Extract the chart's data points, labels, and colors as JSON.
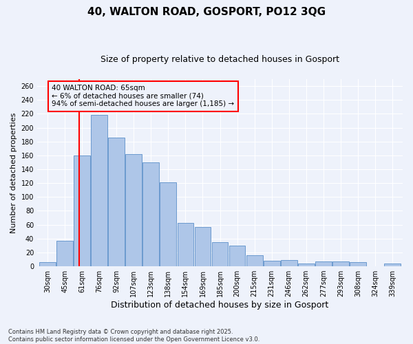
{
  "title1": "40, WALTON ROAD, GOSPORT, PO12 3QG",
  "title2": "Size of property relative to detached houses in Gosport",
  "xlabel": "Distribution of detached houses by size in Gosport",
  "ylabel": "Number of detached properties",
  "footer": "Contains HM Land Registry data © Crown copyright and database right 2025.\nContains public sector information licensed under the Open Government Licence v3.0.",
  "categories": [
    "30sqm",
    "45sqm",
    "61sqm",
    "76sqm",
    "92sqm",
    "107sqm",
    "123sqm",
    "138sqm",
    "154sqm",
    "169sqm",
    "185sqm",
    "200sqm",
    "215sqm",
    "231sqm",
    "246sqm",
    "262sqm",
    "277sqm",
    "293sqm",
    "308sqm",
    "324sqm",
    "339sqm"
  ],
  "values": [
    6,
    37,
    160,
    218,
    186,
    162,
    150,
    121,
    63,
    57,
    35,
    30,
    16,
    8,
    9,
    4,
    7,
    7,
    6,
    0,
    4
  ],
  "bar_color": "#aec6e8",
  "bar_edge_color": "#5b8fc9",
  "annotation_line1": "40 WALTON ROAD: 65sqm",
  "annotation_line2": "← 6% of detached houses are smaller (74)",
  "annotation_line3": "94% of semi-detached houses are larger (1,185) →",
  "redline_x": 1.85,
  "ylim": [
    0,
    270
  ],
  "yticks": [
    0,
    20,
    40,
    60,
    80,
    100,
    120,
    140,
    160,
    180,
    200,
    220,
    240,
    260
  ],
  "bg_color": "#eef2fb",
  "grid_color": "#ffffff",
  "title1_fontsize": 11,
  "title2_fontsize": 9,
  "xlabel_fontsize": 9,
  "ylabel_fontsize": 8,
  "tick_fontsize": 7,
  "footer_fontsize": 6,
  "annotation_fontsize": 7.5
}
